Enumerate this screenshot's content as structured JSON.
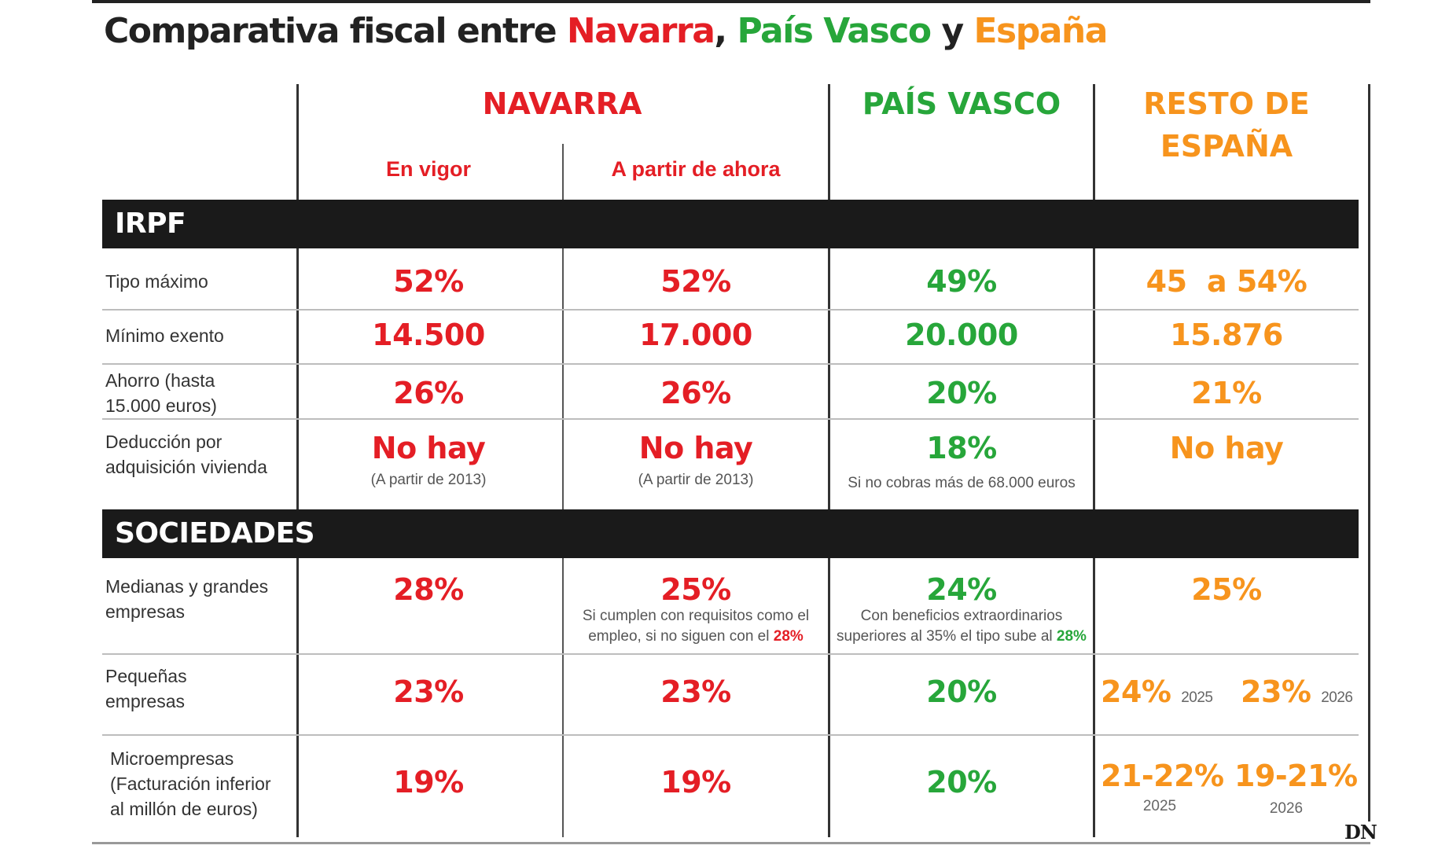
{
  "title": {
    "prefix": "Comparativa fiscal entre ",
    "navarra": "Navarra",
    "comma": ", ",
    "pais_vasco": "País Vasco",
    "y": " y ",
    "espana": "España"
  },
  "colors": {
    "navarra": "#e41e25",
    "pais_vasco": "#27a63a",
    "espana": "#f7941d",
    "band": "#1a1a1a"
  },
  "columns": {
    "navarra": "NAVARRA",
    "navarra_sub1": "En vigor",
    "navarra_sub2": "A partir de ahora",
    "pais_vasco": "PAÍS VASCO",
    "resto_line1": "RESTO DE",
    "resto_line2": "ESPAÑA"
  },
  "sections": {
    "irpf": "IRPF",
    "sociedades": "SOCIEDADES"
  },
  "rows": {
    "tipo_maximo": {
      "label": "Tipo máximo",
      "nav_vigor": "52%",
      "nav_ahora": "52%",
      "pv": "49%",
      "resto": "45  a 54%"
    },
    "minimo_exento": {
      "label": "Mínimo exento",
      "nav_vigor": "14.500",
      "nav_ahora": "17.000",
      "pv": "20.000",
      "resto": "15.876"
    },
    "ahorro": {
      "label_line1": "Ahorro (hasta",
      "label_line2": "15.000 euros)",
      "nav_vigor": "26%",
      "nav_ahora": "26%",
      "pv": "20%",
      "resto": "21%"
    },
    "deduccion": {
      "label_line1": "Deducción por",
      "label_line2": "adquisición vivienda",
      "nav_vigor": "No hay",
      "nav_vigor_note": "(A partir de 2013)",
      "nav_ahora": "No hay",
      "nav_ahora_note": "(A partir de 2013)",
      "pv": "18%",
      "pv_note": "Si no cobras más de 68.000 euros",
      "resto": "No hay"
    },
    "medianas": {
      "label_line1": "Medianas y grandes",
      "label_line2": "empresas",
      "nav_vigor": "28%",
      "nav_ahora": "25%",
      "nav_ahora_note1": "Si cumplen con requisitos como el",
      "nav_ahora_note2": "empleo, si no siguen con el ",
      "nav_ahora_note_value": "28%",
      "pv": "24%",
      "pv_note1": "Con beneficios extraordinarios",
      "pv_note2": "superiores al 35% el tipo sube al ",
      "pv_note_value": "28%",
      "resto": "25%"
    },
    "pequenas": {
      "label_line1": "Pequeñas",
      "label_line2": "empresas",
      "nav_vigor": "23%",
      "nav_ahora": "23%",
      "pv": "20%",
      "resto_a": "24%",
      "resto_a_year": "2025",
      "resto_b": "23%",
      "resto_b_year": "2026"
    },
    "micro": {
      "label_line1": "Microempresas",
      "label_line2": "(Facturación inferior",
      "label_line3": "al millón de euros)",
      "nav_vigor": "19%",
      "nav_ahora": "19%",
      "pv": "20%",
      "resto_a": "21-22%",
      "resto_a_year": "2025",
      "resto_b": "19-21%",
      "resto_b_year": "2026"
    }
  },
  "source_logo": "DN"
}
